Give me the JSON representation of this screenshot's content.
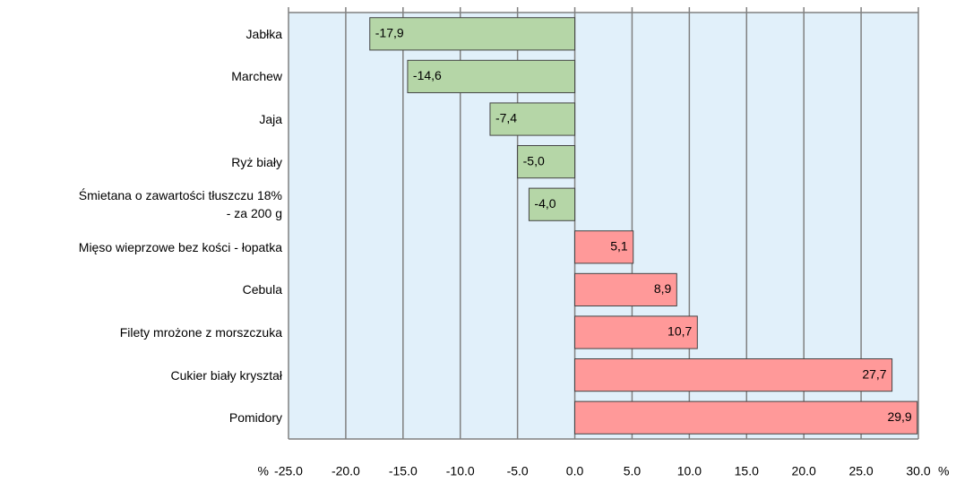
{
  "chart_data": {
    "type": "bar",
    "orientation": "horizontal",
    "categories": [
      "Jabłka",
      "Marchew",
      "Jaja",
      "Ryż biały",
      "Śmietana o zawartości tłuszczu 18%\n- za 200 g",
      "Mięso wieprzowe bez kości - łopatka",
      "Cebula",
      "Filety mrożone z morszczuka",
      "Cukier biały kryształ",
      "Pomidory"
    ],
    "values": [
      -17.9,
      -14.6,
      -7.4,
      -5.0,
      -4.0,
      5.1,
      8.9,
      10.7,
      27.7,
      29.9
    ],
    "value_labels": [
      "-17,9",
      "-14,6",
      "-7,4",
      "-5,0",
      "-4,0",
      "5,1",
      "8,9",
      "10,7",
      "27,7",
      "29,9"
    ],
    "negative_color": "#b5d6a7",
    "positive_color": "#ff9999",
    "x_unit": "%",
    "xlim": [
      -25,
      30
    ],
    "xticks": [
      {
        "value": -25,
        "label": "-25.0"
      },
      {
        "value": -20,
        "label": "-20.0"
      },
      {
        "value": -15,
        "label": "-15.0"
      },
      {
        "value": -10,
        "label": "-10.0"
      },
      {
        "value": -5,
        "label": "-5.0"
      },
      {
        "value": 0,
        "label": "0.0"
      },
      {
        "value": 5,
        "label": "5.0"
      },
      {
        "value": 10,
        "label": "10.0"
      },
      {
        "value": 15,
        "label": "15.0"
      },
      {
        "value": 20,
        "label": "20.0"
      },
      {
        "value": 25,
        "label": "25.0"
      },
      {
        "value": 30,
        "label": "30.0"
      }
    ],
    "grid": true
  }
}
